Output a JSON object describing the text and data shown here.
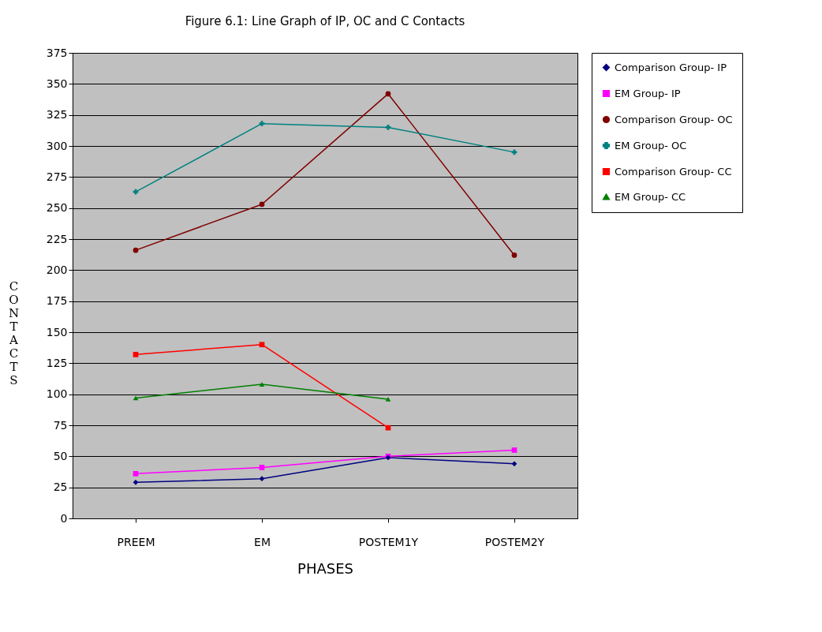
{
  "chart_data": {
    "type": "line",
    "title": "Figure 6.1: Line Graph of IP, OC and C Contacts",
    "xlabel": "PHASES",
    "ylabel": "CONTACTS",
    "categories": [
      "PREEM",
      "EM",
      "POSTEM1Y",
      "POSTEM2Y"
    ],
    "ylim": [
      0,
      375
    ],
    "yticks": [
      0,
      25,
      50,
      75,
      100,
      125,
      150,
      175,
      200,
      225,
      250,
      275,
      300,
      325,
      350,
      375
    ],
    "grid": "y",
    "legend": "right",
    "series": [
      {
        "name": "Comparison Group- IP",
        "color": "#000080",
        "marker": "diamond",
        "values": [
          29,
          32,
          49,
          44
        ]
      },
      {
        "name": "EM Group- IP",
        "color": "#ff00ff",
        "marker": "square",
        "values": [
          36,
          41,
          50,
          55
        ]
      },
      {
        "name": "Comparison Group- OC",
        "color": "#800000",
        "marker": "circle",
        "values": [
          216,
          253,
          342,
          212
        ]
      },
      {
        "name": "EM Group- OC",
        "color": "#008080",
        "marker": "cross",
        "values": [
          263,
          318,
          315,
          295
        ]
      },
      {
        "name": "Comparison Group- CC",
        "color": "#ff0000",
        "marker": "square",
        "values": [
          132,
          140,
          73,
          null
        ]
      },
      {
        "name": "EM Group- CC",
        "color": "#008000",
        "marker": "triangle",
        "values": [
          97,
          108,
          96,
          null
        ]
      }
    ]
  }
}
